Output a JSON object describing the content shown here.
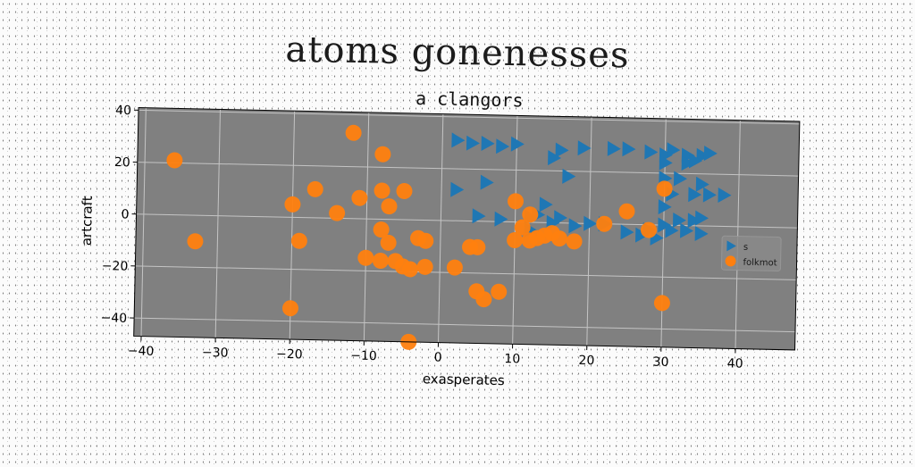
{
  "chart_data": {
    "type": "scatter",
    "title": "atoms gonenesses",
    "subtitle": "a clangors",
    "xlabel": "exasperates",
    "ylabel": "artcraft",
    "xlim": [
      -41,
      48
    ],
    "ylim": [
      -47,
      41
    ],
    "xticks": [
      -40,
      -30,
      -20,
      -10,
      0,
      10,
      20,
      30,
      40
    ],
    "yticks": [
      -40,
      -20,
      0,
      20,
      40
    ],
    "grid": true,
    "legend_position": "center-right",
    "series": [
      {
        "name": "s",
        "marker": "triangle-right",
        "color": "#1f77b4",
        "points": [
          [
            2,
            31
          ],
          [
            4,
            30
          ],
          [
            6,
            30
          ],
          [
            8,
            29
          ],
          [
            10,
            30
          ],
          [
            16,
            28
          ],
          [
            19,
            29
          ],
          [
            23,
            29
          ],
          [
            25,
            29
          ],
          [
            28,
            28
          ],
          [
            30,
            27
          ],
          [
            31,
            29
          ],
          [
            33,
            27
          ],
          [
            35,
            27
          ],
          [
            36,
            28
          ],
          [
            15,
            25
          ],
          [
            30,
            24
          ],
          [
            33,
            24
          ],
          [
            34,
            25
          ],
          [
            17,
            18
          ],
          [
            30,
            18
          ],
          [
            32,
            18
          ],
          [
            35,
            16
          ],
          [
            6,
            15
          ],
          [
            2,
            12
          ],
          [
            31,
            12
          ],
          [
            34,
            12
          ],
          [
            36,
            12
          ],
          [
            38,
            12
          ],
          [
            14,
            7
          ],
          [
            30,
            7
          ],
          [
            5,
            2
          ],
          [
            12,
            2
          ],
          [
            13,
            3
          ],
          [
            16,
            2
          ],
          [
            20,
            0
          ],
          [
            22,
            0
          ],
          [
            30,
            0
          ],
          [
            32,
            2
          ],
          [
            34,
            2
          ],
          [
            35,
            3
          ],
          [
            8,
            1
          ],
          [
            15,
            0
          ],
          [
            18,
            -1
          ],
          [
            28,
            -2
          ],
          [
            31,
            -2
          ],
          [
            33,
            -2
          ],
          [
            35,
            -3
          ],
          [
            12,
            -3
          ],
          [
            27,
            -4
          ],
          [
            25,
            -3
          ],
          [
            29,
            -5
          ]
        ]
      },
      {
        "name": "folkmot",
        "marker": "circle",
        "color": "#ff7f0e",
        "points": [
          [
            -36,
            21
          ],
          [
            -33,
            -10
          ],
          [
            -12,
            33
          ],
          [
            -8,
            25
          ],
          [
            -20,
            5
          ],
          [
            -19,
            -9
          ],
          [
            -17,
            11
          ],
          [
            -14,
            2
          ],
          [
            -11,
            8
          ],
          [
            -8,
            11
          ],
          [
            -7,
            5
          ],
          [
            -5,
            11
          ],
          [
            -8,
            -4
          ],
          [
            -7,
            -9
          ],
          [
            -3,
            -7
          ],
          [
            -2,
            -8
          ],
          [
            -10,
            -15
          ],
          [
            -8,
            -16
          ],
          [
            -6,
            -16
          ],
          [
            -5,
            -18
          ],
          [
            -4,
            -19
          ],
          [
            -2,
            -18
          ],
          [
            -20,
            -35
          ],
          [
            -4,
            -47
          ],
          [
            2,
            -18
          ],
          [
            4,
            -10
          ],
          [
            5,
            -10
          ],
          [
            5,
            -27
          ],
          [
            6,
            -30
          ],
          [
            8,
            -27
          ],
          [
            10,
            8
          ],
          [
            11,
            -2
          ],
          [
            12,
            3
          ],
          [
            12,
            -7
          ],
          [
            13,
            -6
          ],
          [
            14,
            -5
          ],
          [
            15,
            -4
          ],
          [
            16,
            -6
          ],
          [
            10,
            -7
          ],
          [
            18,
            -7
          ],
          [
            22,
            0
          ],
          [
            25,
            5
          ],
          [
            28,
            -2
          ],
          [
            30,
            14
          ],
          [
            30,
            -30
          ]
        ]
      }
    ]
  }
}
